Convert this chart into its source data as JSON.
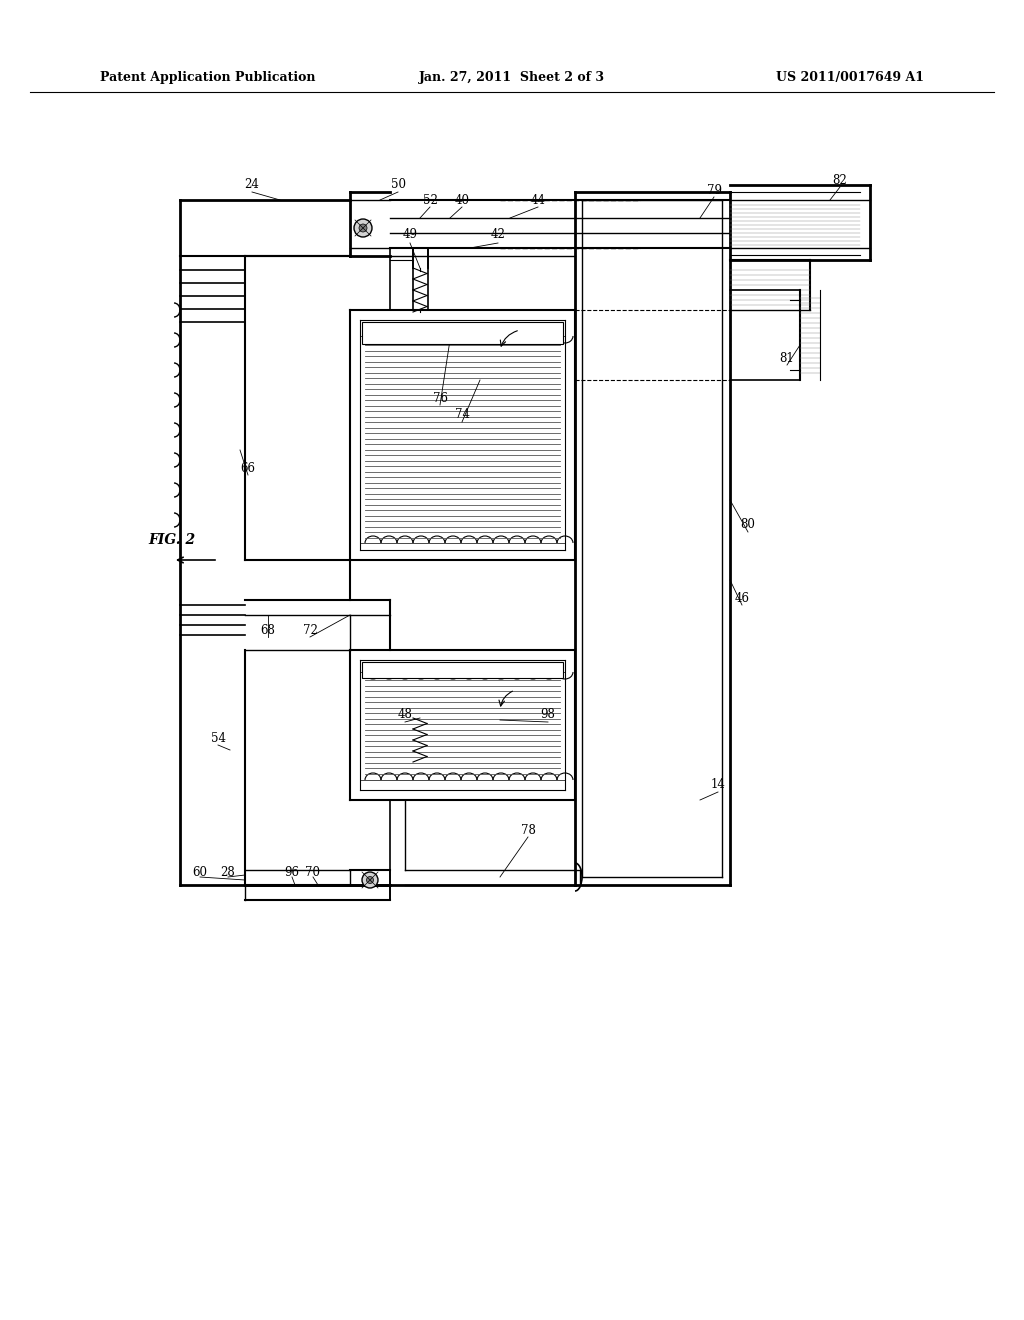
{
  "header_left": "Patent Application Publication",
  "header_center": "Jan. 27, 2011  Sheet 2 of 3",
  "header_right": "US 2011/0017649 A1",
  "fig_label": "FIG. 2",
  "background": "#ffffff"
}
